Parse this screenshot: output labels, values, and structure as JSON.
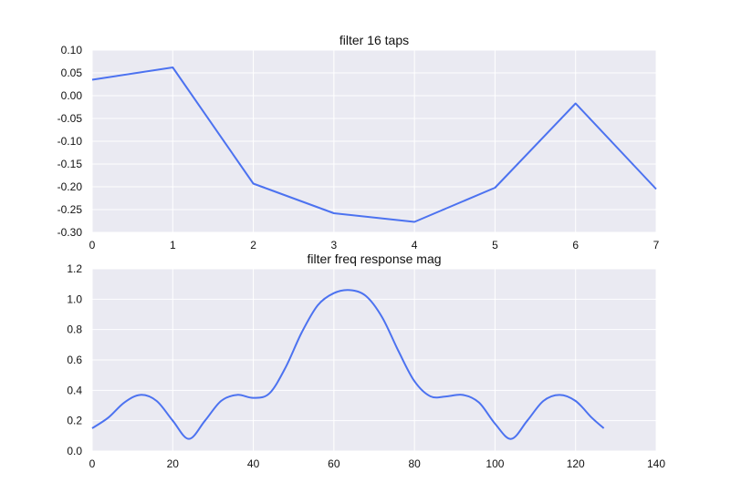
{
  "colors": {
    "background": "#eaeaf2",
    "grid": "#ffffff",
    "line": "#4c72f0"
  },
  "chart_data": [
    {
      "type": "line",
      "title": "filter 16 taps",
      "xlabel": "",
      "ylabel": "",
      "xlim": [
        0,
        7
      ],
      "ylim": [
        -0.3,
        0.1
      ],
      "grid": true,
      "xticks": [
        "0",
        "1",
        "2",
        "3",
        "4",
        "5",
        "6",
        "7"
      ],
      "yticks": [
        "0.10",
        "0.05",
        "0.00",
        "-0.05",
        "-0.10",
        "-0.15",
        "-0.20",
        "-0.25",
        "-0.30"
      ],
      "series": [
        {
          "x": [
            0,
            1,
            2,
            3,
            4,
            5,
            6,
            7
          ],
          "y": [
            0.035,
            0.062,
            -0.193,
            -0.258,
            -0.277,
            -0.202,
            -0.017,
            -0.205
          ]
        }
      ]
    },
    {
      "type": "line",
      "title": "filter freq response mag",
      "xlabel": "",
      "ylabel": "",
      "xlim": [
        0,
        140
      ],
      "ylim": [
        0.0,
        1.2
      ],
      "grid": true,
      "xticks": [
        "0",
        "20",
        "40",
        "60",
        "80",
        "100",
        "120",
        "140"
      ],
      "yticks": [
        "1.2",
        "1.0",
        "0.8",
        "0.6",
        "0.4",
        "0.2",
        "0.0"
      ],
      "series": [
        {
          "x": [
            0,
            4,
            8,
            12,
            16,
            20,
            24,
            28,
            32,
            36,
            40,
            44,
            48,
            52,
            56,
            60,
            64,
            68,
            72,
            76,
            80,
            84,
            88,
            92,
            96,
            100,
            104,
            108,
            112,
            116,
            120,
            124,
            127
          ],
          "y": [
            0.15,
            0.22,
            0.32,
            0.37,
            0.33,
            0.2,
            0.08,
            0.2,
            0.33,
            0.37,
            0.35,
            0.38,
            0.55,
            0.78,
            0.96,
            1.04,
            1.06,
            1.02,
            0.88,
            0.66,
            0.46,
            0.36,
            0.36,
            0.37,
            0.32,
            0.18,
            0.08,
            0.2,
            0.33,
            0.37,
            0.33,
            0.22,
            0.15
          ]
        }
      ]
    }
  ]
}
